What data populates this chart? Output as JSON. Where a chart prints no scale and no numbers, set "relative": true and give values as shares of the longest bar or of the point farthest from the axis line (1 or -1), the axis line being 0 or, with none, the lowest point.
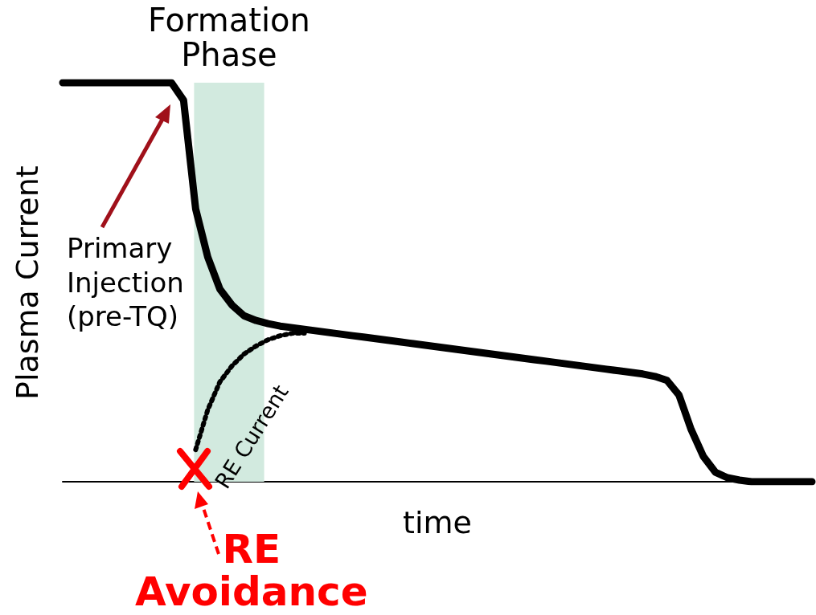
{
  "chart_data": {
    "type": "line",
    "relative": true,
    "xlabel": "time",
    "ylabel": "Plasma Current",
    "marker": "none",
    "categories": [
      null,
      null,
      null,
      null,
      null,
      null,
      null,
      null,
      null,
      null,
      null,
      null,
      null,
      null,
      null,
      null,
      null,
      null,
      null,
      null,
      null,
      null,
      null,
      null,
      null,
      null,
      null,
      null,
      null,
      null,
      null,
      null,
      null,
      null,
      null,
      null,
      null,
      null,
      null,
      null,
      null,
      null,
      null,
      null,
      null,
      null,
      null,
      null,
      null,
      null,
      null,
      null,
      null,
      null,
      null,
      null,
      null,
      null,
      null,
      null,
      null,
      null,
      null
    ],
    "series": [
      {
        "color": "#000000",
        "line_style": "solid",
        "values": [
          1,
          1,
          1,
          1,
          1,
          1,
          1,
          1,
          1,
          1,
          0.956,
          0.684,
          0.563,
          0.483,
          0.443,
          0.416,
          0.404,
          0.396,
          0.39,
          0.386,
          0.382,
          0.378,
          0.374,
          0.37,
          0.366,
          0.362,
          0.358,
          0.354,
          0.35,
          0.346,
          0.342,
          0.338,
          0.334,
          0.33,
          0.326,
          0.322,
          0.318,
          0.314,
          0.31,
          0.306,
          0.302,
          0.298,
          0.294,
          0.29,
          0.286,
          0.282,
          0.278,
          0.274,
          0.27,
          0.264,
          0.254,
          0.217,
          0.131,
          0.064,
          0.024,
          0.01,
          0.004,
          0,
          0,
          0,
          0,
          0,
          0
        ]
      },
      {
        "color": "#000000",
        "line_style": "dotted",
        "values": [
          null,
          null,
          null,
          null,
          null,
          null,
          null,
          null,
          null,
          null,
          null,
          0.08,
          0.18,
          0.25,
          0.29,
          0.32,
          0.34,
          0.356,
          0.366,
          0.372,
          0.372,
          null,
          null,
          null,
          null,
          null,
          null,
          null,
          null,
          null,
          null,
          null,
          null,
          null,
          null,
          null,
          null,
          null,
          null,
          null,
          null,
          null,
          null,
          null,
          null,
          null,
          null,
          null,
          null,
          null,
          null,
          null,
          null,
          null,
          null,
          null,
          null,
          null,
          null,
          null,
          null,
          null,
          null
        ]
      }
    ],
    "annotations": [
      "Formation\nPhase",
      "Primary\nInjection\n(pre-TQ)",
      "RE Current",
      "RE\nAvoidance"
    ]
  }
}
